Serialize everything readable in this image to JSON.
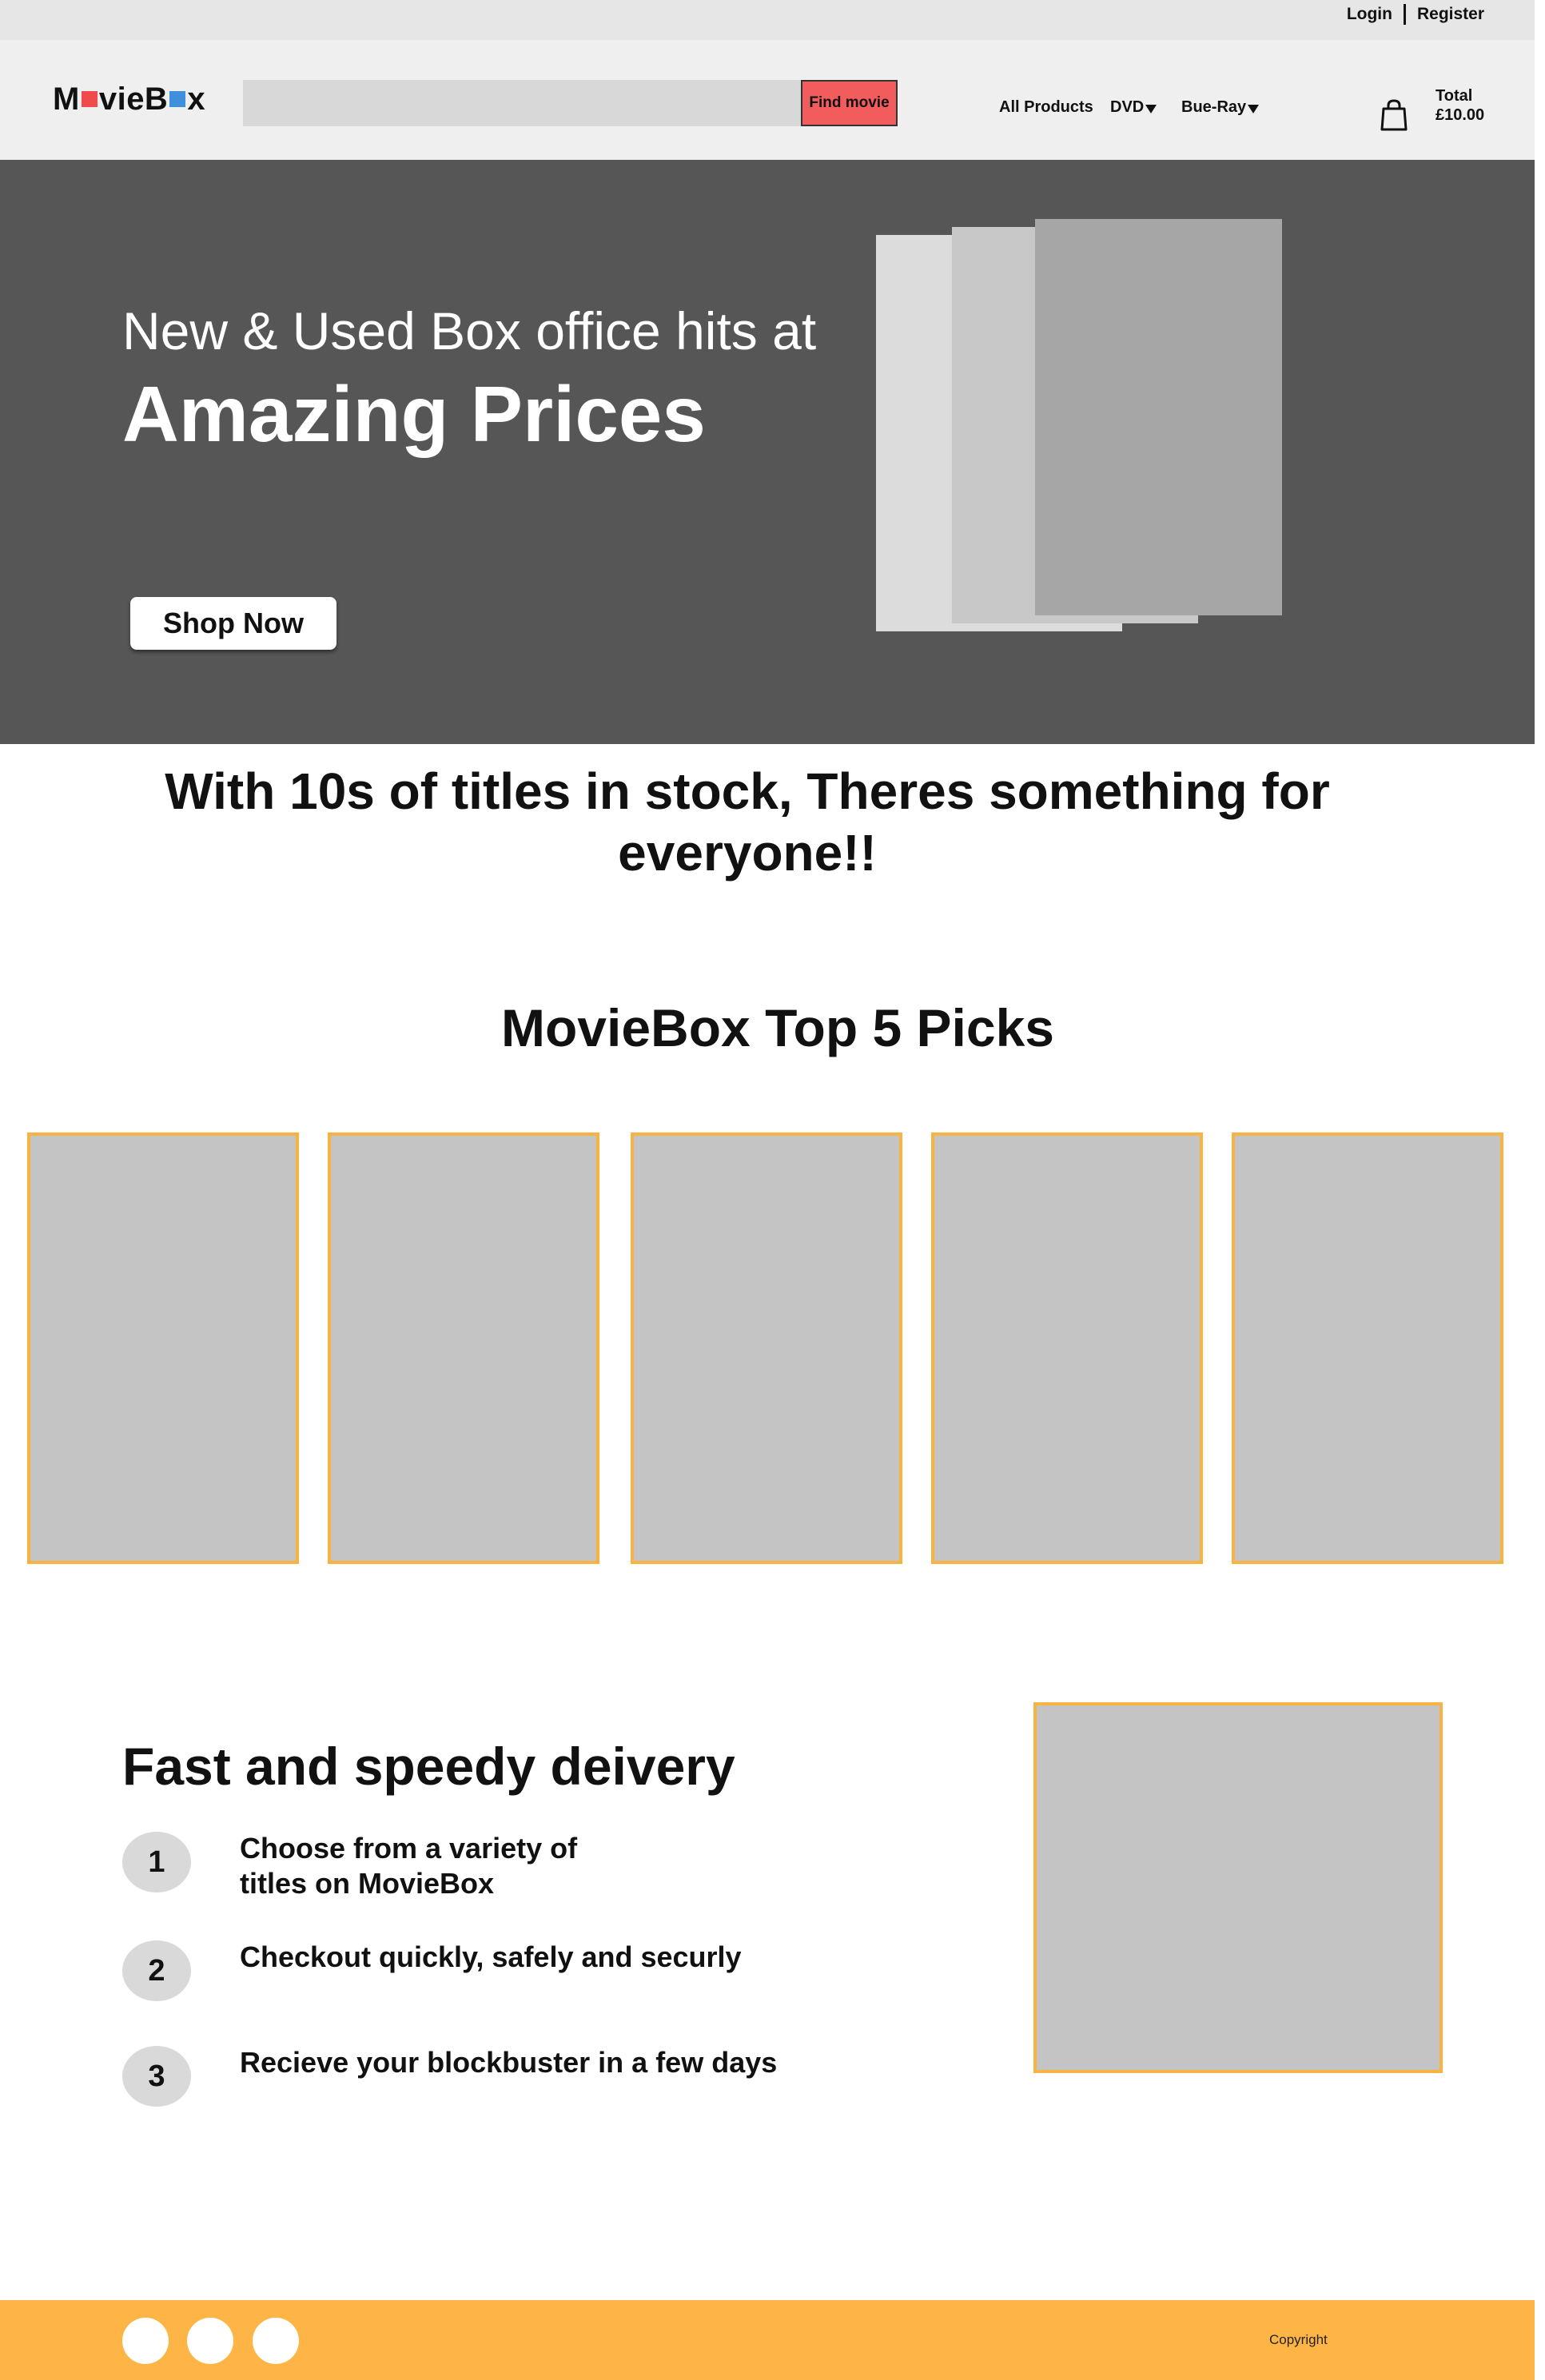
{
  "topbar": {
    "login": "Login",
    "register": "Register"
  },
  "header": {
    "logo": {
      "part1": "M",
      "part2": "vieB",
      "part3": "x"
    },
    "search": {
      "placeholder": "",
      "button": "Find movie"
    },
    "nav": {
      "all_products": "All Products",
      "dvd": "DVD",
      "bluray": "Bue-Ray"
    },
    "cart": {
      "label": "Total",
      "amount": "£10.00"
    }
  },
  "hero": {
    "subtitle": "New & Used Box office hits at",
    "title": "Amazing Prices",
    "cta": "Shop Now"
  },
  "tagline": "With 10s of titles in stock, Theres something for everyone!!",
  "picks": {
    "title": "MovieBox Top 5 Picks",
    "count": 5
  },
  "delivery": {
    "title": "Fast and speedy deivery",
    "steps": [
      {
        "num": "1",
        "line1": "Choose from a variety of",
        "line2": "titles on MovieBox"
      },
      {
        "num": "2",
        "line1": "Checkout quickly, safely and securly"
      },
      {
        "num": "3",
        "line1": "Recieve your blockbuster in a few days"
      }
    ]
  },
  "footer": {
    "copyright": "Copyright"
  },
  "colors": {
    "accent": "#ffb545",
    "find_button": "#f25c5c",
    "hero_bg": "#565656",
    "placeholder": "#c4c4c4",
    "logo_red": "#ef4b4b",
    "logo_blue": "#3f8fdc"
  }
}
